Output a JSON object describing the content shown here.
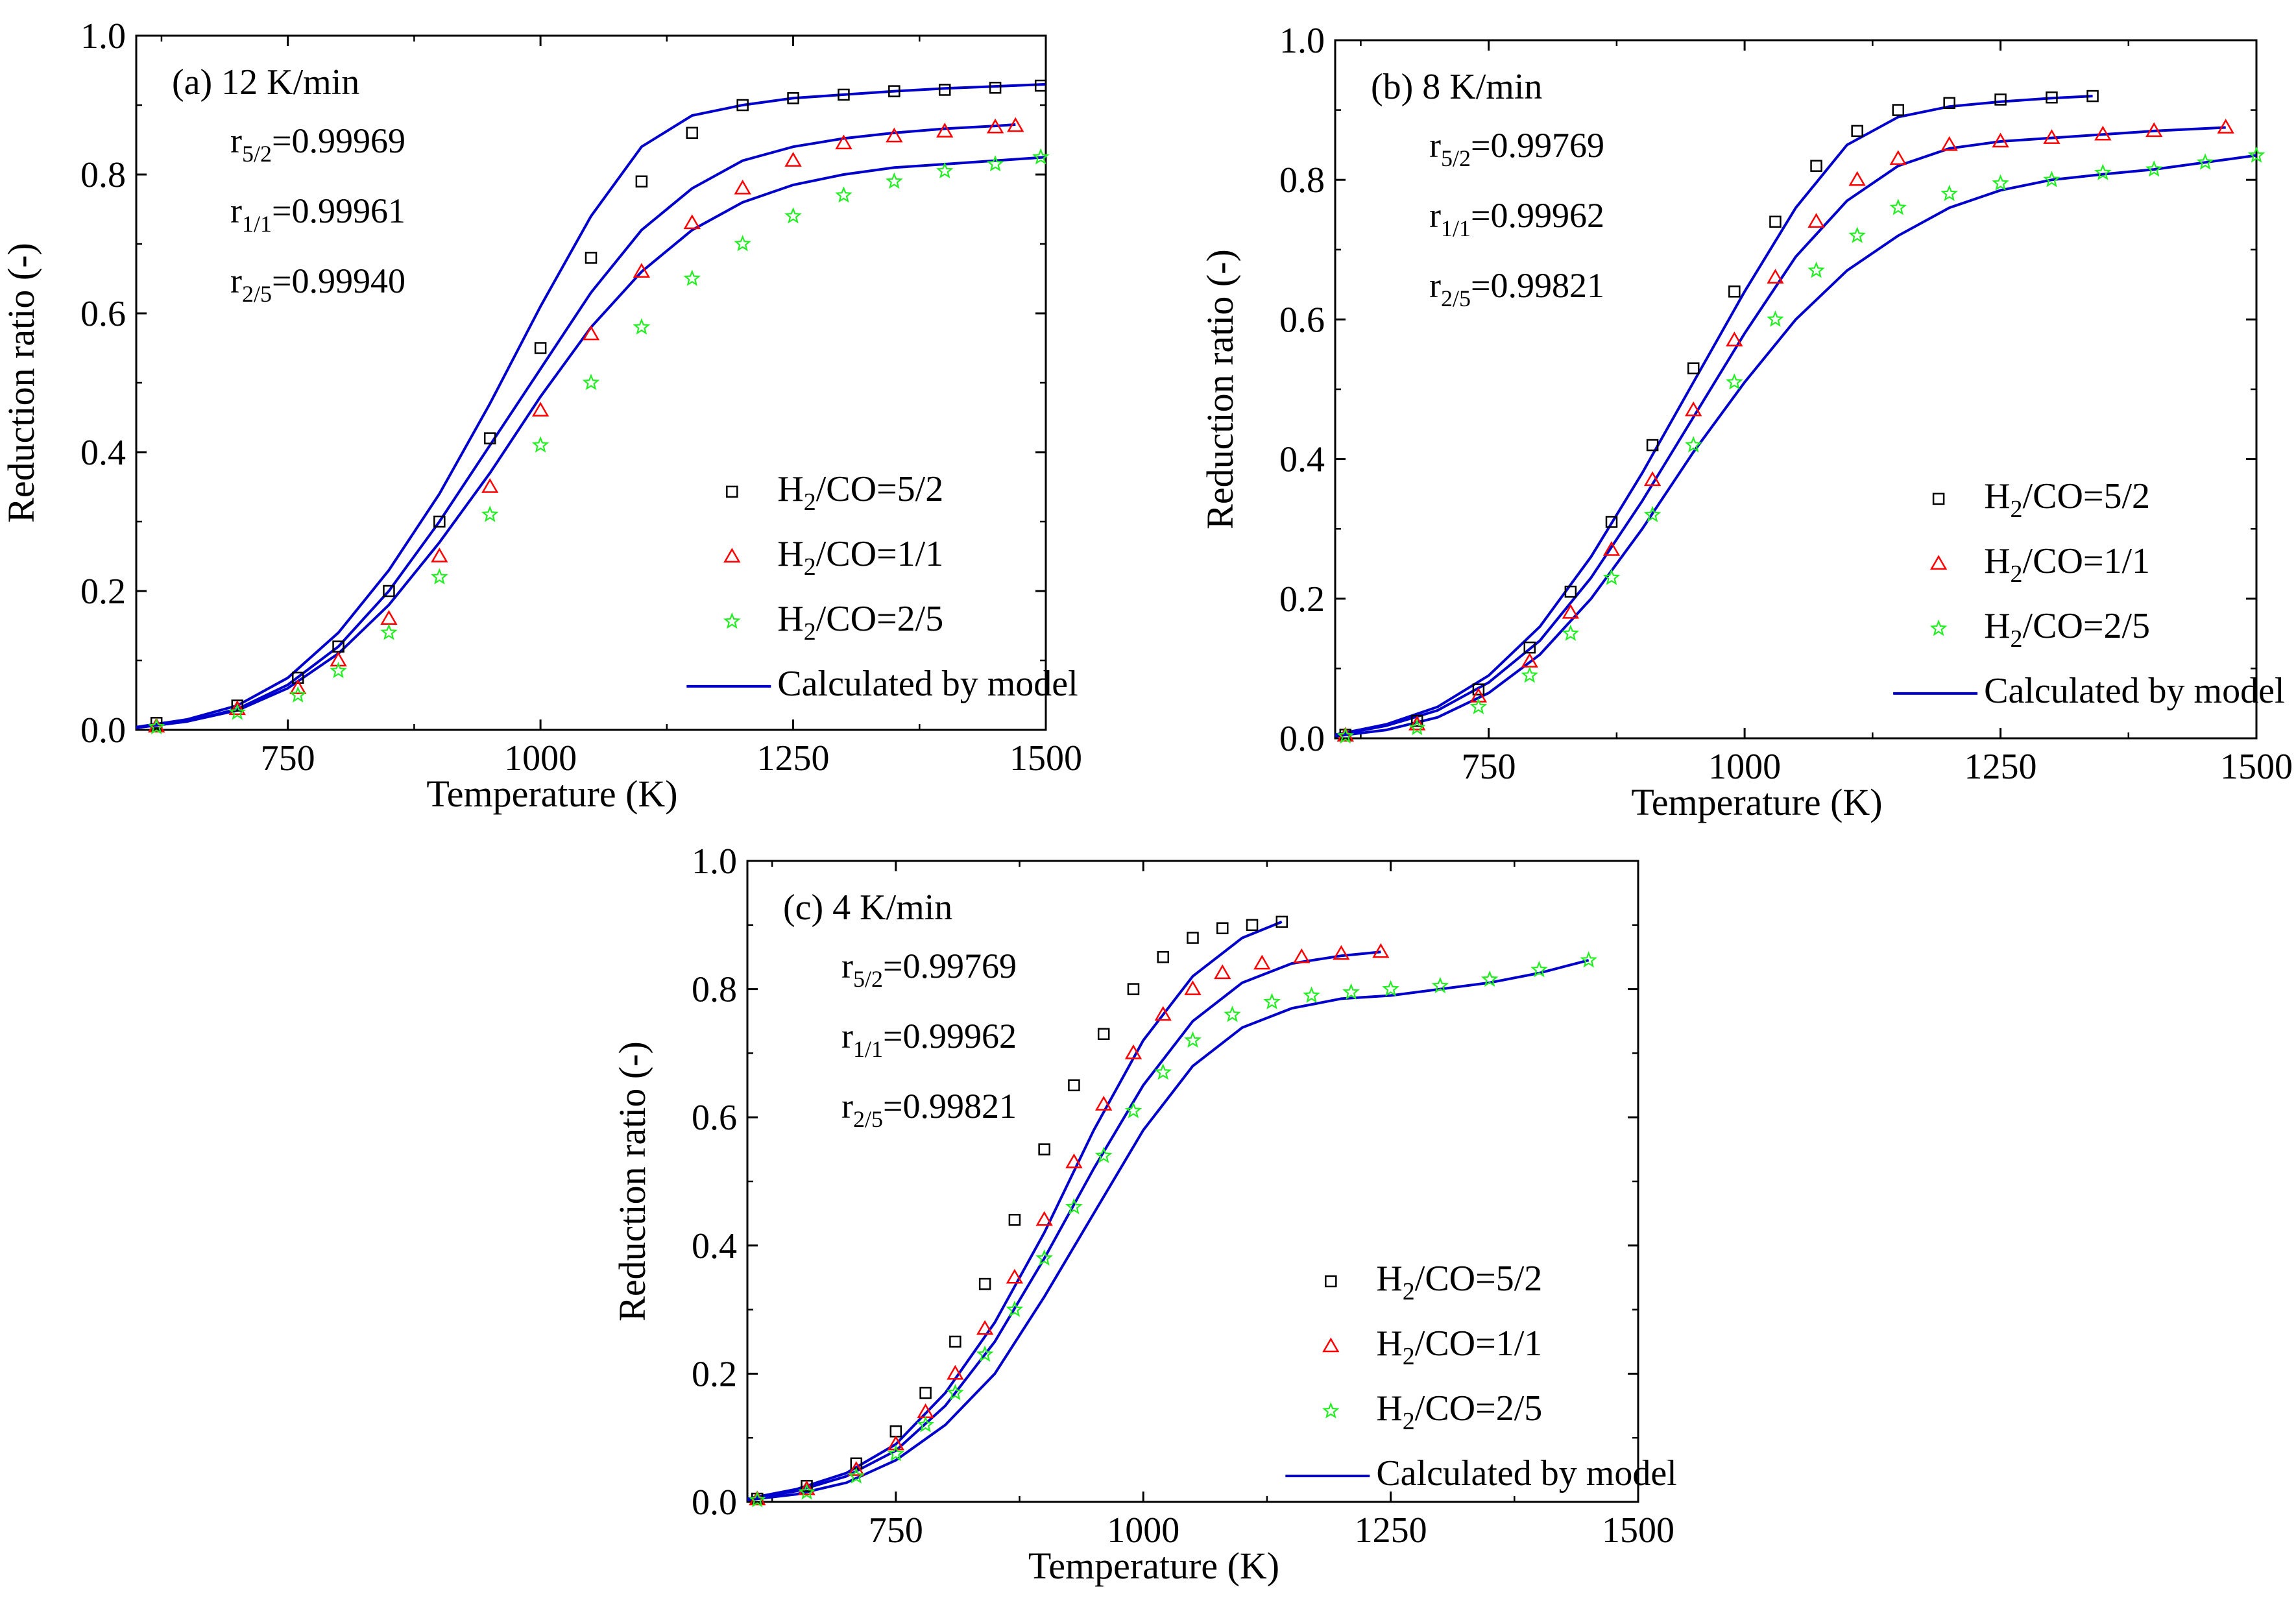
{
  "colors": {
    "h2co_5_2": "#000000",
    "h2co_1_1": "#ff0000",
    "h2co_2_5": "#22ee22",
    "model": "#0000cc"
  },
  "chart_data": [
    {
      "id": "a",
      "type": "scatter",
      "title": "(a) 12 K/min",
      "xlabel": "Temperature (K)",
      "ylabel": "Reduction ratio (-)",
      "xlim": [
        600,
        1500
      ],
      "ylim": [
        0,
        1.0
      ],
      "xticks": [
        "750",
        "1000",
        "1250",
        "1500"
      ],
      "yticks": [
        "0.0",
        "0.2",
        "0.4",
        "0.6",
        "0.8",
        "1.0"
      ],
      "correlations": [
        {
          "symbol": "r",
          "sub": "5/2",
          "value": "=0.99969"
        },
        {
          "symbol": "r",
          "sub": "1/1",
          "value": "=0.99961"
        },
        {
          "symbol": "r",
          "sub": "2/5",
          "value": "=0.99940"
        }
      ],
      "legend": [
        {
          "marker": "square",
          "pre": "H",
          "sub": "2",
          "post": "/CO=5/2"
        },
        {
          "marker": "triangle",
          "pre": "H",
          "sub": "2",
          "post": "/CO=1/1"
        },
        {
          "marker": "star",
          "pre": "H",
          "sub": "2",
          "post": "/CO=2/5"
        },
        {
          "marker": "line",
          "pre": "Calculated by model",
          "sub": "",
          "post": ""
        }
      ],
      "series": [
        {
          "name": "H2/CO=5/2",
          "kind": "points",
          "marker": "square",
          "color": "#000000",
          "x": [
            620,
            700,
            760,
            800,
            850,
            900,
            950,
            1000,
            1050,
            1100,
            1150,
            1200,
            1250,
            1300,
            1350,
            1400,
            1450,
            1495
          ],
          "y": [
            0.01,
            0.035,
            0.075,
            0.12,
            0.2,
            0.3,
            0.42,
            0.55,
            0.68,
            0.79,
            0.86,
            0.9,
            0.91,
            0.915,
            0.92,
            0.922,
            0.925,
            0.928
          ]
        },
        {
          "name": "H2/CO=1/1",
          "kind": "points",
          "marker": "triangle",
          "color": "#ff0000",
          "x": [
            620,
            700,
            760,
            800,
            850,
            900,
            950,
            1000,
            1050,
            1100,
            1150,
            1200,
            1250,
            1300,
            1350,
            1400,
            1450,
            1470
          ],
          "y": [
            0.005,
            0.03,
            0.06,
            0.1,
            0.16,
            0.25,
            0.35,
            0.46,
            0.57,
            0.66,
            0.73,
            0.78,
            0.82,
            0.845,
            0.855,
            0.862,
            0.868,
            0.87
          ]
        },
        {
          "name": "H2/CO=2/5",
          "kind": "points",
          "marker": "star",
          "color": "#22ee22",
          "x": [
            620,
            700,
            760,
            800,
            850,
            900,
            950,
            1000,
            1050,
            1100,
            1150,
            1200,
            1250,
            1300,
            1350,
            1400,
            1450,
            1495
          ],
          "y": [
            0.004,
            0.025,
            0.05,
            0.085,
            0.14,
            0.22,
            0.31,
            0.41,
            0.5,
            0.58,
            0.65,
            0.7,
            0.74,
            0.77,
            0.79,
            0.805,
            0.815,
            0.825
          ]
        },
        {
          "name": "Calculated by model 5/2",
          "kind": "line",
          "color": "#0000cc",
          "x": [
            600,
            650,
            700,
            750,
            800,
            850,
            900,
            950,
            1000,
            1050,
            1100,
            1150,
            1200,
            1250,
            1300,
            1350,
            1400,
            1450,
            1500
          ],
          "y": [
            0.004,
            0.015,
            0.035,
            0.075,
            0.14,
            0.23,
            0.34,
            0.47,
            0.61,
            0.74,
            0.84,
            0.885,
            0.9,
            0.91,
            0.915,
            0.92,
            0.924,
            0.927,
            0.93
          ]
        },
        {
          "name": "Calculated by model 1/1",
          "kind": "line",
          "color": "#0000cc",
          "x": [
            600,
            650,
            700,
            750,
            800,
            850,
            900,
            950,
            1000,
            1050,
            1100,
            1150,
            1200,
            1250,
            1300,
            1350,
            1400,
            1450,
            1470
          ],
          "y": [
            0.003,
            0.012,
            0.03,
            0.065,
            0.12,
            0.2,
            0.3,
            0.41,
            0.52,
            0.63,
            0.72,
            0.78,
            0.82,
            0.84,
            0.852,
            0.86,
            0.866,
            0.87,
            0.872
          ]
        },
        {
          "name": "Calculated by model 2/5",
          "kind": "line",
          "color": "#0000cc",
          "x": [
            600,
            650,
            700,
            750,
            800,
            850,
            900,
            950,
            1000,
            1050,
            1100,
            1150,
            1200,
            1250,
            1300,
            1350,
            1400,
            1450,
            1500
          ],
          "y": [
            0.003,
            0.012,
            0.028,
            0.06,
            0.11,
            0.18,
            0.27,
            0.37,
            0.48,
            0.58,
            0.66,
            0.72,
            0.76,
            0.785,
            0.8,
            0.81,
            0.815,
            0.82,
            0.825
          ]
        }
      ]
    },
    {
      "id": "b",
      "type": "scatter",
      "title": "(b) 8 K/min",
      "xlabel": "Temperature (K)",
      "ylabel": "Reduction ratio (-)",
      "xlim": [
        600,
        1500
      ],
      "ylim": [
        0,
        1.0
      ],
      "xticks": [
        "750",
        "1000",
        "1250",
        "1500"
      ],
      "yticks": [
        "0.0",
        "0.2",
        "0.4",
        "0.6",
        "0.8",
        "1.0"
      ],
      "correlations": [
        {
          "symbol": "r",
          "sub": "5/2",
          "value": "=0.99769"
        },
        {
          "symbol": "r",
          "sub": "1/1",
          "value": "=0.99962"
        },
        {
          "symbol": "r",
          "sub": "2/5",
          "value": "=0.99821"
        }
      ],
      "legend": [
        {
          "marker": "square",
          "pre": "H",
          "sub": "2",
          "post": "/CO=5/2"
        },
        {
          "marker": "triangle",
          "pre": "H",
          "sub": "2",
          "post": "/CO=1/1"
        },
        {
          "marker": "star",
          "pre": "H",
          "sub": "2",
          "post": "/CO=2/5"
        },
        {
          "marker": "line",
          "pre": "Calculated by model",
          "sub": "",
          "post": ""
        }
      ],
      "series": [
        {
          "name": "H2/CO=5/2",
          "kind": "points",
          "marker": "square",
          "color": "#000000",
          "x": [
            610,
            680,
            740,
            790,
            830,
            870,
            910,
            950,
            990,
            1030,
            1070,
            1110,
            1150,
            1200,
            1250,
            1300,
            1340
          ],
          "y": [
            0.005,
            0.025,
            0.07,
            0.13,
            0.21,
            0.31,
            0.42,
            0.53,
            0.64,
            0.74,
            0.82,
            0.87,
            0.9,
            0.91,
            0.915,
            0.918,
            0.92
          ]
        },
        {
          "name": "H2/CO=1/1",
          "kind": "points",
          "marker": "triangle",
          "color": "#ff0000",
          "x": [
            610,
            680,
            740,
            790,
            830,
            870,
            910,
            950,
            990,
            1030,
            1070,
            1110,
            1150,
            1200,
            1250,
            1300,
            1350,
            1400,
            1470
          ],
          "y": [
            0.004,
            0.02,
            0.06,
            0.11,
            0.18,
            0.27,
            0.37,
            0.47,
            0.57,
            0.66,
            0.74,
            0.8,
            0.83,
            0.85,
            0.855,
            0.86,
            0.865,
            0.87,
            0.875
          ]
        },
        {
          "name": "H2/CO=2/5",
          "kind": "points",
          "marker": "star",
          "color": "#22ee22",
          "x": [
            610,
            680,
            740,
            790,
            830,
            870,
            910,
            950,
            990,
            1030,
            1070,
            1110,
            1150,
            1200,
            1250,
            1300,
            1350,
            1400,
            1450,
            1500
          ],
          "y": [
            0.003,
            0.015,
            0.045,
            0.09,
            0.15,
            0.23,
            0.32,
            0.42,
            0.51,
            0.6,
            0.67,
            0.72,
            0.76,
            0.78,
            0.795,
            0.8,
            0.81,
            0.815,
            0.825,
            0.835
          ]
        },
        {
          "name": "Calculated by model 5/2",
          "kind": "line",
          "color": "#0000cc",
          "x": [
            600,
            650,
            700,
            750,
            800,
            850,
            900,
            950,
            1000,
            1050,
            1100,
            1150,
            1200,
            1250,
            1300,
            1340
          ],
          "y": [
            0.005,
            0.02,
            0.045,
            0.09,
            0.16,
            0.26,
            0.38,
            0.51,
            0.64,
            0.76,
            0.85,
            0.89,
            0.905,
            0.912,
            0.917,
            0.92
          ]
        },
        {
          "name": "Calculated by model 1/1",
          "kind": "line",
          "color": "#0000cc",
          "x": [
            600,
            650,
            700,
            750,
            800,
            850,
            900,
            950,
            1000,
            1050,
            1100,
            1150,
            1200,
            1250,
            1300,
            1350,
            1400,
            1470
          ],
          "y": [
            0.004,
            0.018,
            0.04,
            0.08,
            0.14,
            0.23,
            0.34,
            0.46,
            0.58,
            0.69,
            0.77,
            0.82,
            0.845,
            0.855,
            0.86,
            0.865,
            0.87,
            0.875
          ]
        },
        {
          "name": "Calculated by model 2/5",
          "kind": "line",
          "color": "#0000cc",
          "x": [
            600,
            650,
            700,
            750,
            800,
            850,
            900,
            950,
            1000,
            1050,
            1100,
            1150,
            1200,
            1250,
            1300,
            1350,
            1400,
            1450,
            1500
          ],
          "y": [
            0.003,
            0.012,
            0.03,
            0.065,
            0.12,
            0.2,
            0.3,
            0.41,
            0.51,
            0.6,
            0.67,
            0.72,
            0.76,
            0.785,
            0.8,
            0.808,
            0.815,
            0.825,
            0.835
          ]
        }
      ]
    },
    {
      "id": "c",
      "type": "scatter",
      "title": "(c) 4 K/min",
      "xlabel": "Temperature (K)",
      "ylabel": "Reduction ratio (-)",
      "xlim": [
        600,
        1500
      ],
      "ylim": [
        0,
        1.0
      ],
      "xticks": [
        "750",
        "1000",
        "1250",
        "1500"
      ],
      "yticks": [
        "0.0",
        "0.2",
        "0.4",
        "0.6",
        "0.8",
        "1.0"
      ],
      "correlations": [
        {
          "symbol": "r",
          "sub": "5/2",
          "value": "=0.99769"
        },
        {
          "symbol": "r",
          "sub": "1/1",
          "value": "=0.99962"
        },
        {
          "symbol": "r",
          "sub": "2/5",
          "value": "=0.99821"
        }
      ],
      "legend": [
        {
          "marker": "square",
          "pre": "H",
          "sub": "2",
          "post": "/CO=5/2"
        },
        {
          "marker": "triangle",
          "pre": "H",
          "sub": "2",
          "post": "/CO=1/1"
        },
        {
          "marker": "star",
          "pre": "H",
          "sub": "2",
          "post": "/CO=2/5"
        },
        {
          "marker": "line",
          "pre": "Calculated by model",
          "sub": "",
          "post": ""
        }
      ],
      "series": [
        {
          "name": "H2/CO=5/2",
          "kind": "points",
          "marker": "square",
          "color": "#000000",
          "x": [
            610,
            660,
            710,
            750,
            780,
            810,
            840,
            870,
            900,
            930,
            960,
            990,
            1020,
            1050,
            1080,
            1110,
            1140
          ],
          "y": [
            0.005,
            0.025,
            0.06,
            0.11,
            0.17,
            0.25,
            0.34,
            0.44,
            0.55,
            0.65,
            0.73,
            0.8,
            0.85,
            0.88,
            0.895,
            0.9,
            0.905
          ]
        },
        {
          "name": "H2/CO=1/1",
          "kind": "points",
          "marker": "triangle",
          "color": "#ff0000",
          "x": [
            610,
            660,
            710,
            750,
            780,
            810,
            840,
            870,
            900,
            930,
            960,
            990,
            1020,
            1050,
            1080,
            1120,
            1160,
            1200,
            1240
          ],
          "y": [
            0.004,
            0.02,
            0.05,
            0.09,
            0.14,
            0.2,
            0.27,
            0.35,
            0.44,
            0.53,
            0.62,
            0.7,
            0.76,
            0.8,
            0.825,
            0.84,
            0.85,
            0.855,
            0.858
          ]
        },
        {
          "name": "H2/CO=2/5",
          "kind": "points",
          "marker": "star",
          "color": "#22ee22",
          "x": [
            610,
            660,
            710,
            750,
            780,
            810,
            840,
            870,
            900,
            930,
            960,
            990,
            1020,
            1050,
            1090,
            1130,
            1170,
            1210,
            1250,
            1300,
            1350,
            1400,
            1450
          ],
          "y": [
            0.003,
            0.015,
            0.04,
            0.075,
            0.12,
            0.17,
            0.23,
            0.3,
            0.38,
            0.46,
            0.54,
            0.61,
            0.67,
            0.72,
            0.76,
            0.78,
            0.79,
            0.795,
            0.8,
            0.805,
            0.815,
            0.83,
            0.845
          ]
        },
        {
          "name": "Calculated by model 5/2",
          "kind": "line",
          "color": "#0000cc",
          "x": [
            600,
            650,
            700,
            750,
            800,
            850,
            900,
            950,
            1000,
            1050,
            1100,
            1140
          ],
          "y": [
            0.005,
            0.02,
            0.045,
            0.09,
            0.17,
            0.28,
            0.42,
            0.58,
            0.72,
            0.82,
            0.88,
            0.905
          ]
        },
        {
          "name": "Calculated by model 1/1",
          "kind": "line",
          "color": "#0000cc",
          "x": [
            600,
            650,
            700,
            750,
            800,
            850,
            900,
            950,
            1000,
            1050,
            1100,
            1150,
            1200,
            1240
          ],
          "y": [
            0.004,
            0.017,
            0.04,
            0.08,
            0.15,
            0.25,
            0.38,
            0.52,
            0.65,
            0.75,
            0.81,
            0.84,
            0.852,
            0.858
          ]
        },
        {
          "name": "Calculated by model 2/5",
          "kind": "line",
          "color": "#0000cc",
          "x": [
            600,
            650,
            700,
            750,
            800,
            850,
            900,
            950,
            1000,
            1050,
            1100,
            1150,
            1200,
            1250,
            1300,
            1350,
            1400,
            1450
          ],
          "y": [
            0.003,
            0.012,
            0.03,
            0.065,
            0.12,
            0.2,
            0.32,
            0.45,
            0.58,
            0.68,
            0.74,
            0.77,
            0.785,
            0.79,
            0.8,
            0.81,
            0.825,
            0.845
          ]
        }
      ]
    }
  ]
}
